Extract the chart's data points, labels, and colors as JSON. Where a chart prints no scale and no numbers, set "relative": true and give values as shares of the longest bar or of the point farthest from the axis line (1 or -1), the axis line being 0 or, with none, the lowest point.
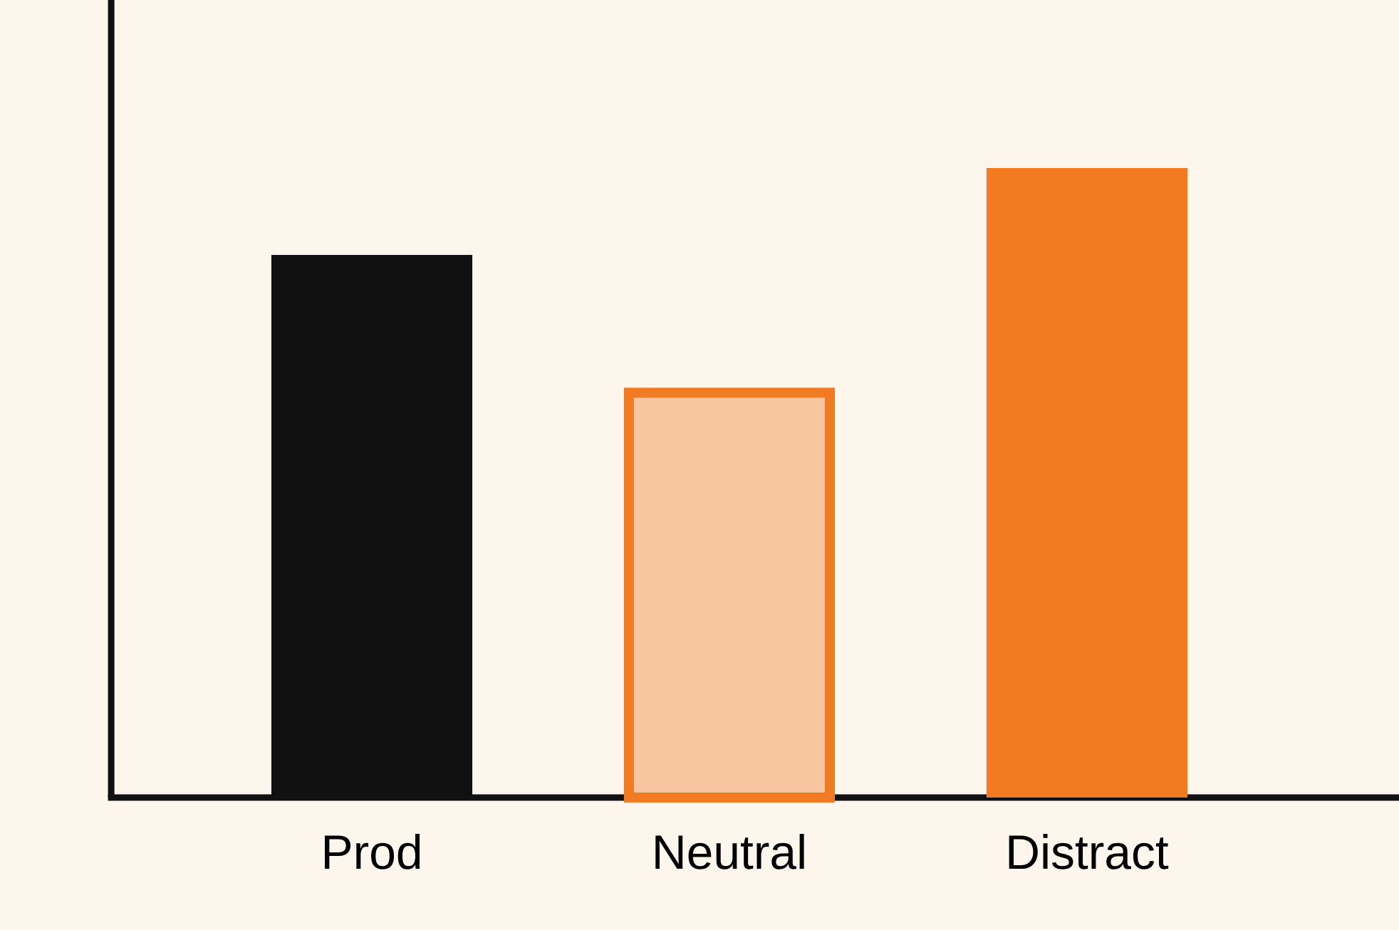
{
  "chart_data": {
    "type": "bar",
    "relative": true,
    "categories": [
      "Prod",
      "Neutral",
      "Distract"
    ],
    "values": [
      0.862,
      0.643,
      1
    ],
    "colors": [
      "#111111",
      "#f7c59f",
      "#f27b21"
    ]
  }
}
